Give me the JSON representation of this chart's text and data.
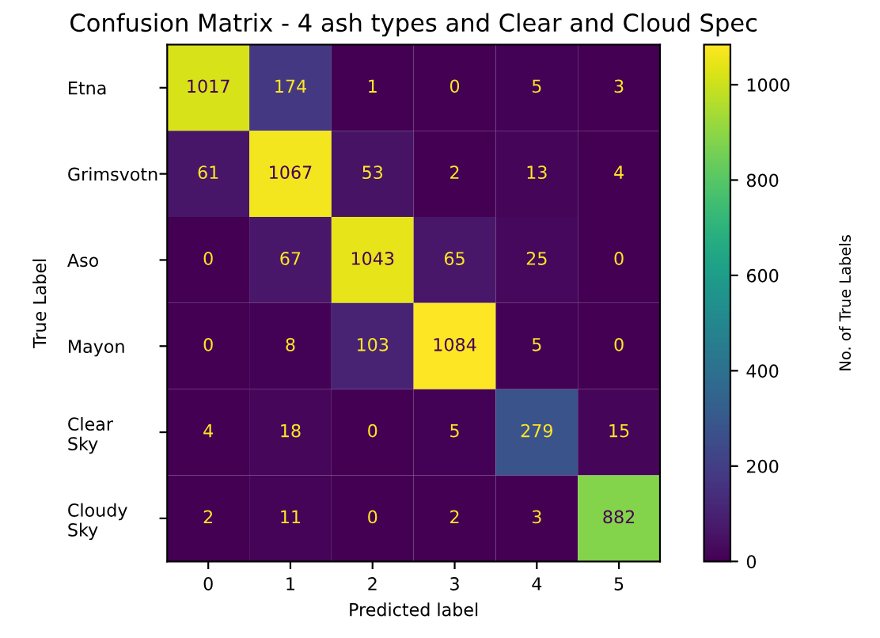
{
  "chart_data": {
    "type": "heatmap",
    "title": "Confusion Matrix - 4 ash types and Clear and Cloud Spec",
    "xlabel": "Predicted label",
    "ylabel": "True Label",
    "clabel": "No. of True Labels",
    "categories": [
      "0",
      "1",
      "2",
      "3",
      "4",
      "5"
    ],
    "y_categories": [
      "Etna",
      "Grimsvotn",
      "Aso",
      "Mayon",
      "Clear\nSky",
      "Cloudy\nSky"
    ],
    "cells": [
      [
        1017,
        174,
        1,
        0,
        5,
        3
      ],
      [
        61,
        1067,
        53,
        2,
        13,
        4
      ],
      [
        0,
        67,
        1043,
        65,
        25,
        0
      ],
      [
        0,
        8,
        103,
        1084,
        5,
        0
      ],
      [
        4,
        18,
        0,
        5,
        279,
        15
      ],
      [
        2,
        11,
        0,
        2,
        3,
        882
      ]
    ],
    "clim": [
      0,
      1084
    ],
    "cticks": [
      0,
      200,
      400,
      600,
      800,
      1000
    ],
    "data_labels": true
  }
}
